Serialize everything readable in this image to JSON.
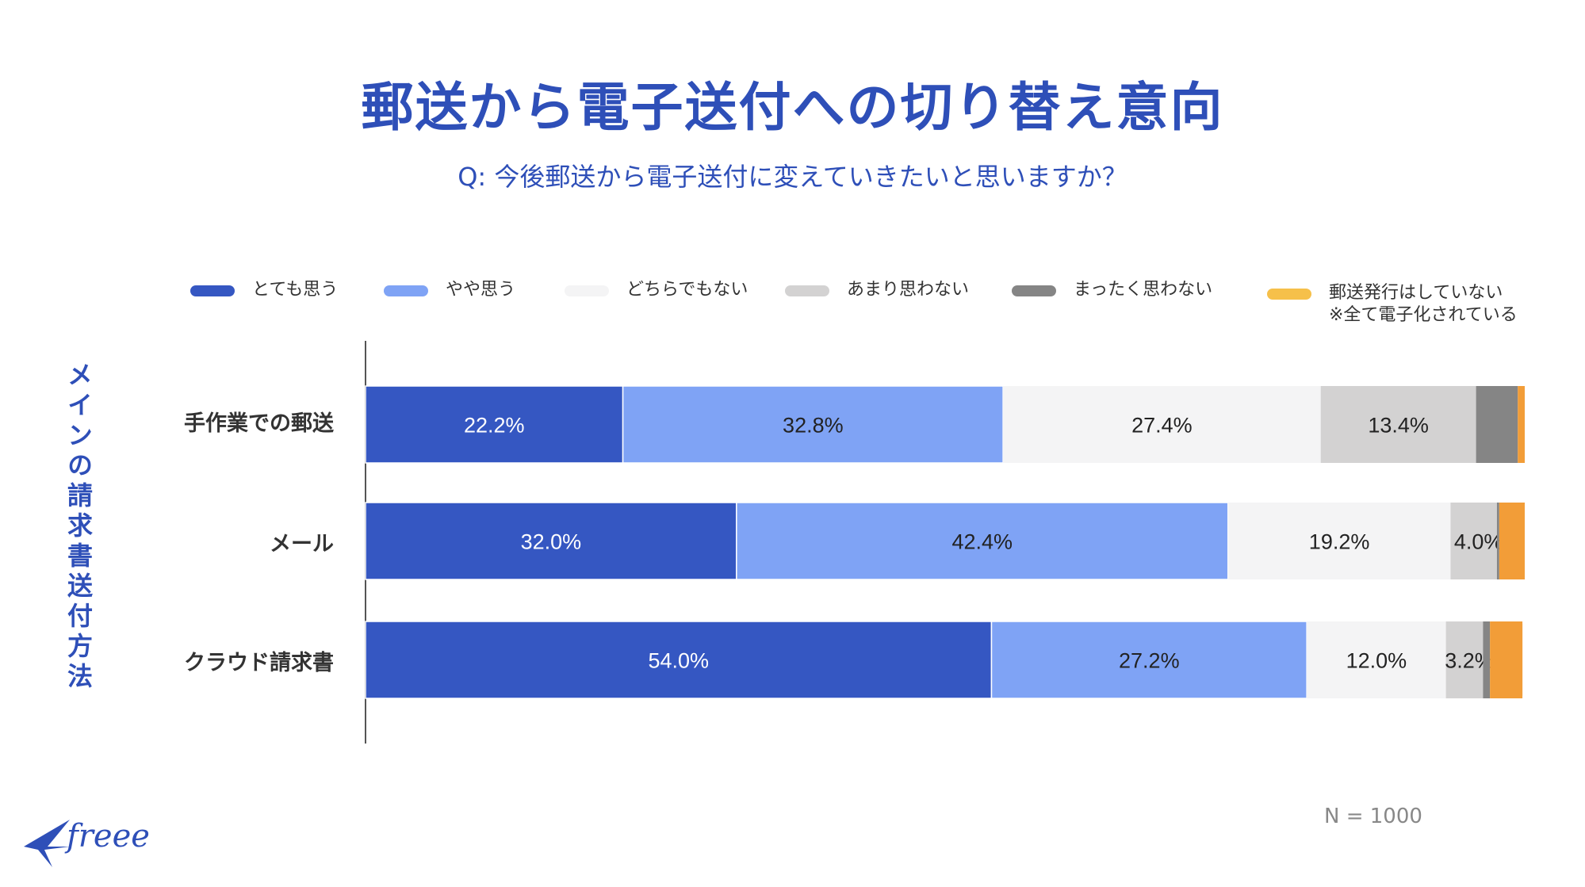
{
  "title": "郵送から電子送付への切り替え意向",
  "subtitle": "Q: 今後郵送から電子送付に変えていきたいと思いますか？",
  "sample_size": "N = 1000",
  "brand": {
    "name": "freee",
    "color": "#2e4fb8"
  },
  "chart_data": {
    "type": "bar",
    "orientation": "horizontal",
    "stacked": true,
    "y_axis_title": "メインの請求書送付方法",
    "categories": [
      "手作業での郵送",
      "メール",
      "クラウド請求書"
    ],
    "xlim": [
      0,
      100
    ],
    "grid": false,
    "legend_position": "top",
    "series": [
      {
        "name": "とても思う",
        "color": "#3557c2",
        "label_color": "#ffffff",
        "values": [
          22.2,
          32.0,
          54.0
        ],
        "labels": [
          "22.2%",
          "32.0%",
          "54.0%"
        ]
      },
      {
        "name": "やや思う",
        "color": "#7fa3f5",
        "label_color": "#222222",
        "values": [
          32.8,
          42.4,
          27.2
        ],
        "labels": [
          "32.8%",
          "42.4%",
          "27.2%"
        ]
      },
      {
        "name": "どちらでもない",
        "color": "#f4f4f5",
        "label_color": "#222222",
        "values": [
          27.4,
          19.2,
          12.0
        ],
        "labels": [
          "27.4%",
          "19.2%",
          "12.0%"
        ]
      },
      {
        "name": "あまり思わない",
        "color": "#d3d2d2",
        "label_color": "#222222",
        "values": [
          13.4,
          4.0,
          3.2
        ],
        "labels": [
          "13.4%",
          "4.0%",
          "3.2%"
        ]
      },
      {
        "name": "まったく思わない",
        "color": "#858585",
        "label_color": "#222222",
        "values": [
          3.6,
          0.2,
          0.6
        ],
        "labels": [
          "",
          "",
          ""
        ]
      },
      {
        "name": "郵送発行はしていない\n※全て電子化されている",
        "color": "#f29d38",
        "legend_color": "#f6c04a",
        "label_color": "#222222",
        "values": [
          0.6,
          2.2,
          2.8
        ],
        "labels": [
          "",
          "",
          ""
        ]
      }
    ]
  }
}
